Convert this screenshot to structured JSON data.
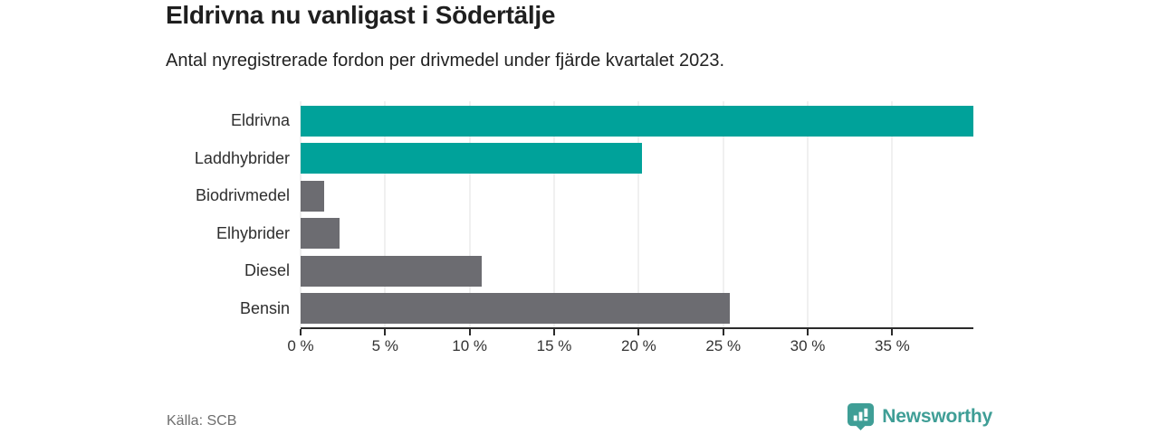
{
  "header": {
    "title": "Eldrivna nu vanligast i Södertälje",
    "subtitle": "Antal nyregistrerade fordon per drivmedel under fjärde kvartalet 2023."
  },
  "chart_data": {
    "type": "bar",
    "orientation": "horizontal",
    "title": "Eldrivna nu vanligast i Södertälje",
    "subtitle": "Antal nyregistrerade fordon per drivmedel under fjärde kvartalet 2023.",
    "categories": [
      "Eldrivna",
      "Laddhybrider",
      "Biodrivmedel",
      "Elhybrider",
      "Diesel",
      "Bensin"
    ],
    "values": [
      39.8,
      20.2,
      1.4,
      2.3,
      10.7,
      25.4
    ],
    "unit": "%",
    "bar_colors": [
      "#00a29a",
      "#00a29a",
      "#6c6c71",
      "#6c6c71",
      "#6c6c71",
      "#6c6c71"
    ],
    "xlabel": "",
    "ylabel": "",
    "xlim": [
      0,
      39.8
    ],
    "xticks": [
      0,
      5,
      10,
      15,
      20,
      25,
      30,
      35
    ],
    "xtick_labels": [
      "0 %",
      "5 %",
      "10 %",
      "15 %",
      "20 %",
      "25 %",
      "30 %",
      "35 %"
    ],
    "grid": true,
    "legend": false,
    "source": "Källa: SCB"
  },
  "footer": {
    "source": "Källa: SCB",
    "brand_name": "Newsworthy",
    "logo_icon": "bar-chart-speech-bubble-icon"
  },
  "colors": {
    "accent_teal": "#00a29a",
    "neutral_gray": "#6c6c71",
    "brand_teal": "#3f9e96",
    "gridline": "#e0e0e0",
    "axis": "#2b2b2b",
    "text_dark": "#1f1f1f",
    "text_muted": "#6e6e6e",
    "background": "#ffffff"
  }
}
